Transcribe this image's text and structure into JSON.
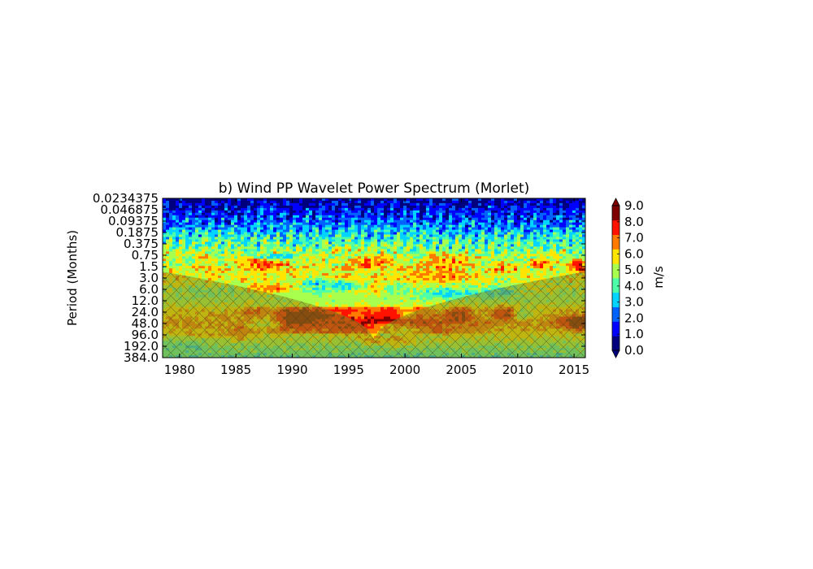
{
  "chart_data": {
    "type": "heatmap",
    "title": "b) Wind PP Wavelet Power Spectrum (Morlet)",
    "xlabel": "",
    "ylabel": "Period (Months)",
    "x_ticks": [
      1980,
      1985,
      1990,
      1995,
      2000,
      2005,
      2010,
      2015
    ],
    "xlim": [
      1978.5,
      2016.0
    ],
    "y_scale": "log2",
    "y_inverted": true,
    "y_ticks": [
      "0.0234375",
      "0.046875",
      "0.09375",
      "0.1875",
      "0.375",
      "0.75",
      "1.5",
      "3.0",
      "6.0",
      "12.0",
      "24.0",
      "48.0",
      "96.0",
      "192.0",
      "384.0"
    ],
    "ylim": [
      0.0234375,
      384.0
    ],
    "colorbar": {
      "label": "m/s",
      "ticks": [
        "0.0",
        "1.0",
        "2.0",
        "3.0",
        "4.0",
        "5.0",
        "6.0",
        "7.0",
        "8.0",
        "9.0"
      ],
      "range": [
        0,
        9
      ],
      "extend": "both",
      "colormap": "jet",
      "colors": [
        "#00007f",
        "#0000ff",
        "#0063ff",
        "#00d4ff",
        "#4effa9",
        "#a9ff4e",
        "#ffe500",
        "#ff7b00",
        "#ff1300",
        "#7f0000"
      ]
    },
    "band_power_by_period": [
      {
        "period": "0.0234375",
        "level": 0.6
      },
      {
        "period": "0.046875",
        "level": 1.6
      },
      {
        "period": "0.09375",
        "level": 2.4
      },
      {
        "period": "0.1875",
        "level": 3.6
      },
      {
        "period": "0.375",
        "level": 4.6
      },
      {
        "period": "0.75",
        "level": 5.6
      },
      {
        "period": "1.5",
        "level": 6.2
      },
      {
        "period": "3.0",
        "level": 6.3
      },
      {
        "period": "6.0",
        "level": 5.6
      },
      {
        "period": "12.0",
        "level": 5.4
      },
      {
        "period": "24.0",
        "level": 6.6
      },
      {
        "period": "48.0",
        "level": 7.3
      },
      {
        "period": "96.0",
        "level": 6.4
      },
      {
        "period": "192.0",
        "level": 5.2
      },
      {
        "period": "384.0",
        "level": 4.2
      }
    ],
    "cone_of_influence": {
      "hatched": true,
      "hatch_color": "#8c8c1e"
    }
  }
}
